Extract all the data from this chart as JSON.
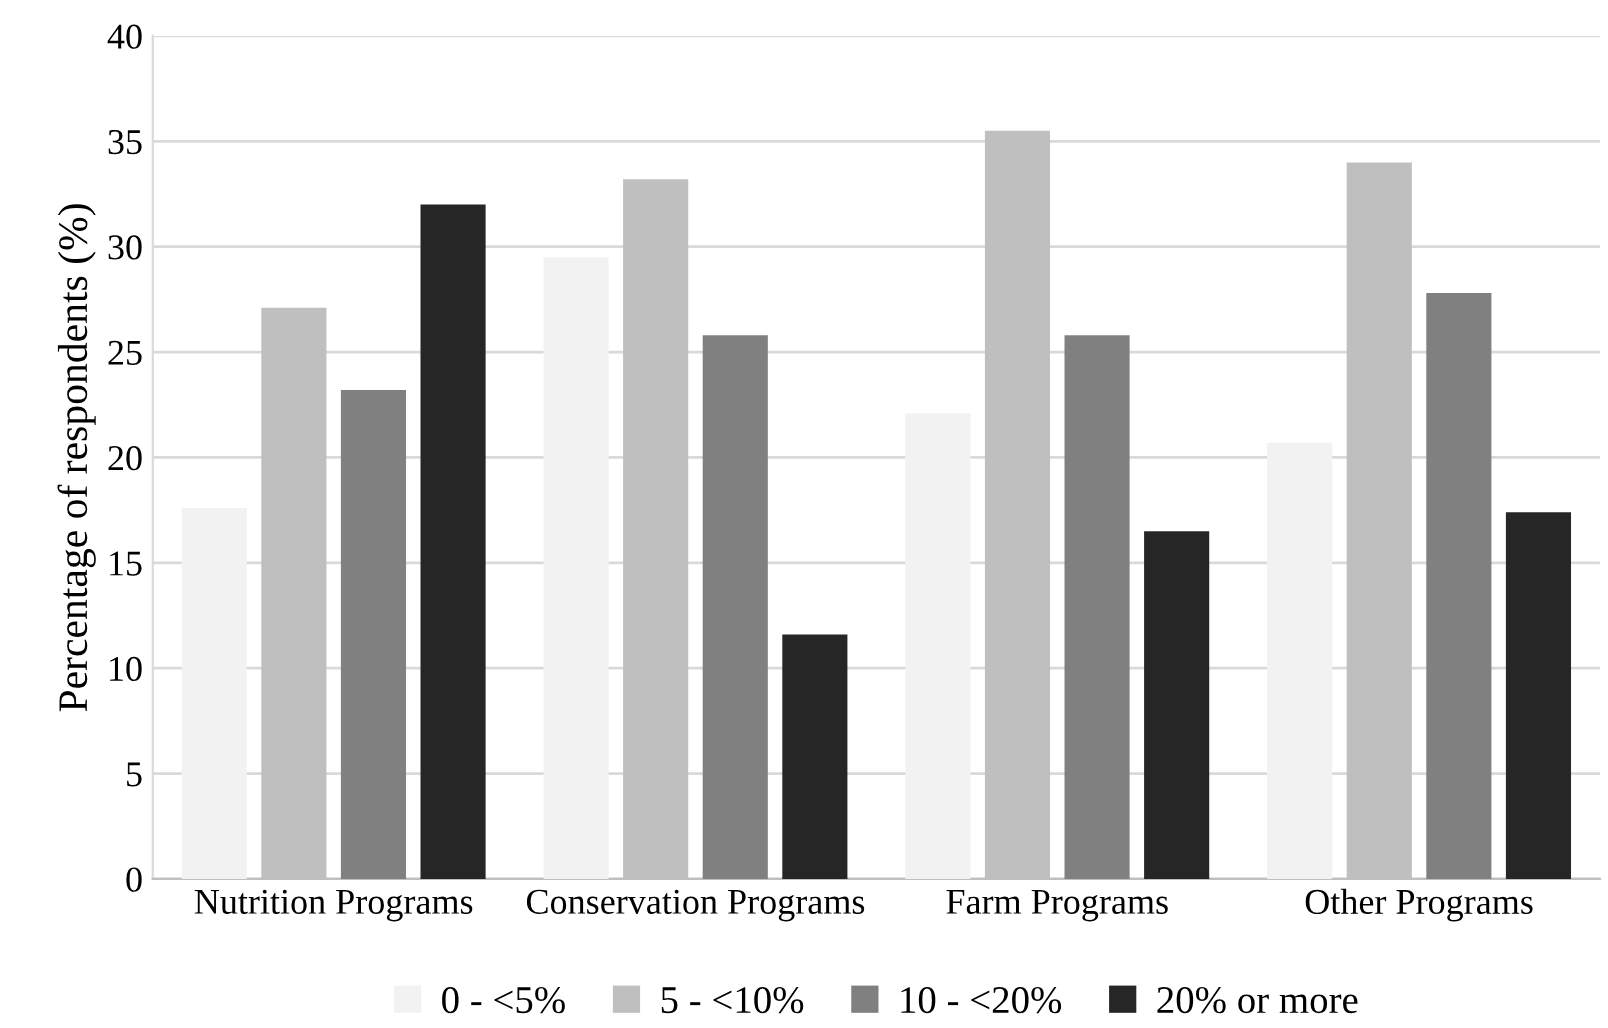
{
  "chart_data": {
    "type": "bar",
    "ylabel": "Percentage of respondents (%)",
    "categories": [
      "Nutrition Programs",
      "Conservation Programs",
      "Farm Programs",
      "Other Programs"
    ],
    "series": [
      {
        "name": "0 - <5%",
        "color": "#f2f2f2",
        "values": [
          17.6,
          29.5,
          22.1,
          20.7
        ]
      },
      {
        "name": "5 - <10%",
        "color": "#bfbfbf",
        "values": [
          27.1,
          33.2,
          35.5,
          34.0
        ]
      },
      {
        "name": "10 - <20%",
        "color": "#808080",
        "values": [
          23.2,
          25.8,
          25.8,
          27.8
        ]
      },
      {
        "name": "20% or more",
        "color": "#262626",
        "values": [
          32.0,
          11.6,
          16.5,
          17.4
        ]
      }
    ],
    "ylim": [
      0,
      40
    ],
    "yticks": [
      0,
      5,
      10,
      15,
      20,
      25,
      30,
      35,
      40
    ],
    "grid": "y",
    "legend": "bottom"
  }
}
